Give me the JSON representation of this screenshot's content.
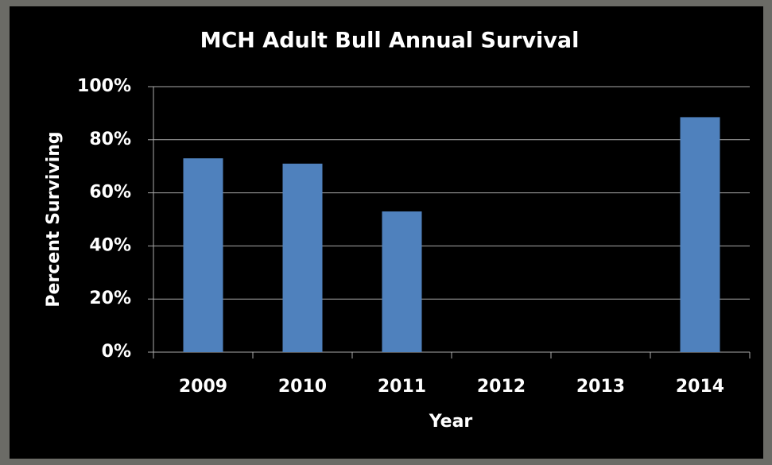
{
  "chart_data": {
    "type": "bar",
    "title": "MCH Adult Bull Annual Survival",
    "x_label": "Year",
    "y_label": "Percent Surviving",
    "categories": [
      "2009",
      "2010",
      "2011",
      "2012",
      "2013",
      "2014"
    ],
    "values": [
      73,
      71,
      53,
      null,
      null,
      88.5
    ],
    "color": "#4f81bd",
    "ylim": [
      0,
      100
    ],
    "yticks": [
      {
        "value": 0,
        "label": "0%"
      },
      {
        "value": 20,
        "label": "20%"
      },
      {
        "value": 40,
        "label": "40%"
      },
      {
        "value": 60,
        "label": "60%"
      },
      {
        "value": 80,
        "label": "80%"
      },
      {
        "value": 100,
        "label": "100%"
      }
    ],
    "grid": true
  }
}
